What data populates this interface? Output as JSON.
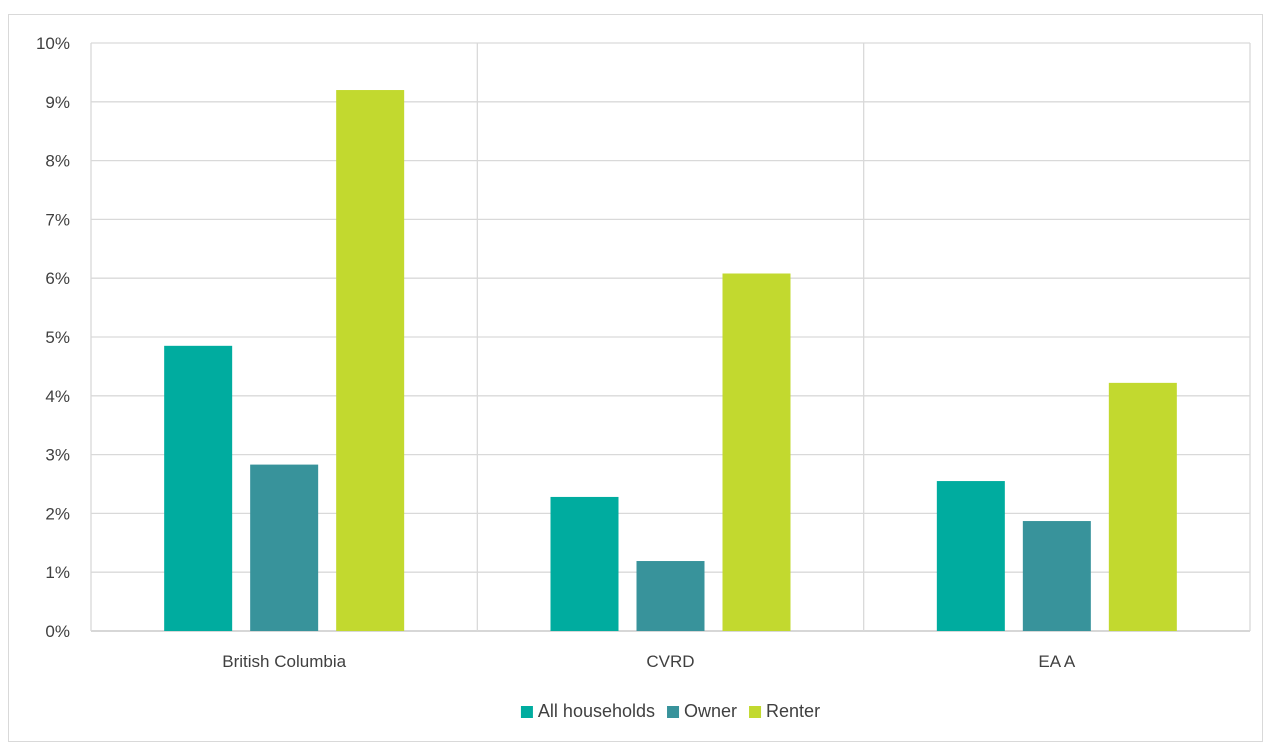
{
  "title": "",
  "chart_data": {
    "type": "bar",
    "categories": [
      "British Columbia",
      "CVRD",
      "EA A"
    ],
    "series": [
      {
        "name": "All households",
        "color": "#00ac9f",
        "values": [
          4.85,
          2.28,
          2.55
        ]
      },
      {
        "name": "Owner",
        "color": "#38939b",
        "values": [
          2.83,
          1.19,
          1.87
        ]
      },
      {
        "name": "Renter",
        "color": "#c2d92f",
        "values": [
          9.2,
          6.08,
          4.22
        ]
      }
    ],
    "ylim": [
      0,
      10
    ],
    "yticks": [
      0,
      1,
      2,
      3,
      4,
      5,
      6,
      7,
      8,
      9,
      10
    ],
    "ytick_suffix": "%",
    "xlabel": "",
    "ylabel": "",
    "grid": true,
    "legend_position": "bottom"
  }
}
